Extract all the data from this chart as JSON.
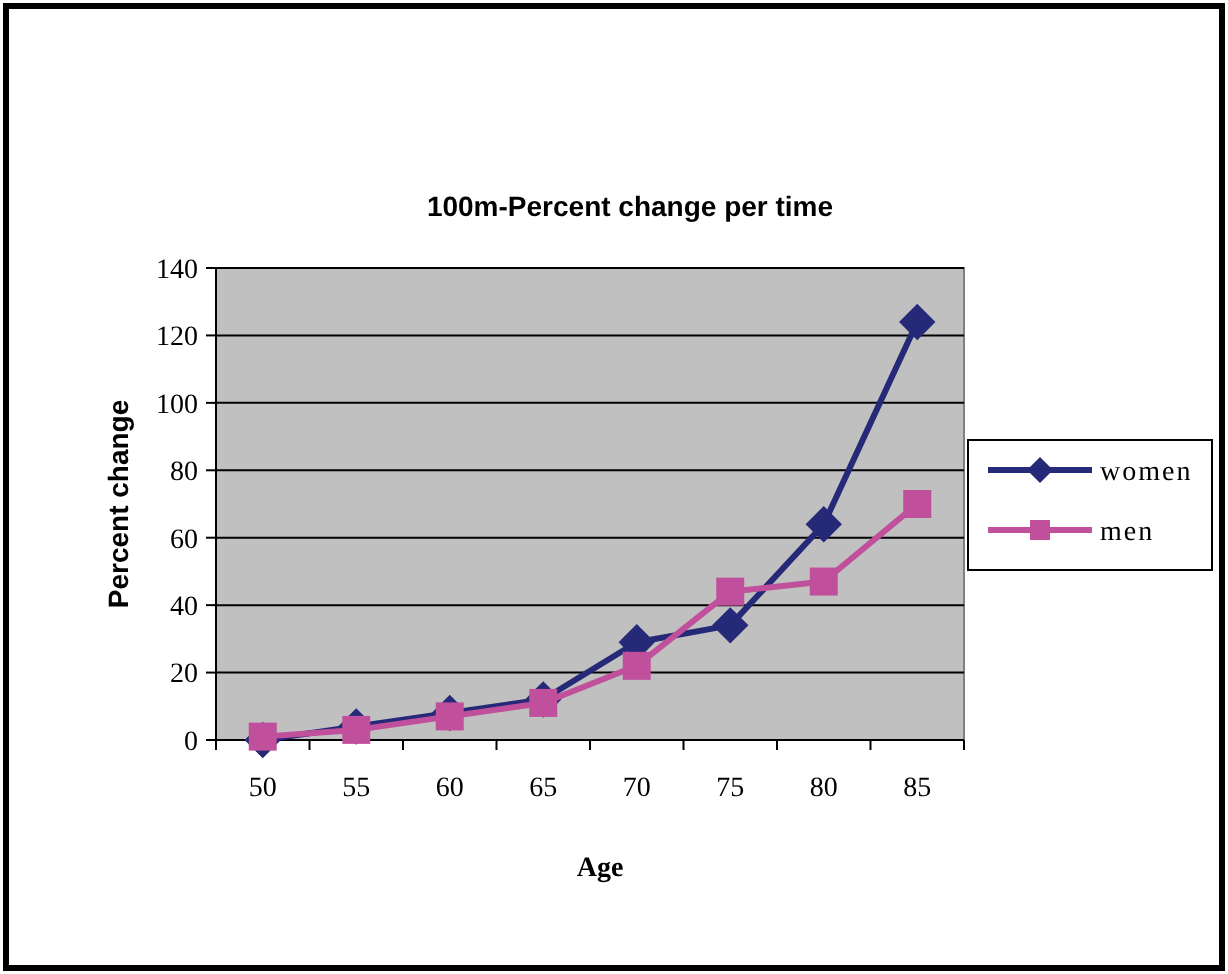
{
  "chart_data": {
    "type": "line",
    "title": "100m-Percent change per time",
    "xlabel": "Age",
    "ylabel": "Percent change",
    "categories": [
      "50",
      "55",
      "60",
      "65",
      "70",
      "75",
      "80",
      "85"
    ],
    "series": [
      {
        "name": "women",
        "color": "#262878",
        "marker": "diamond",
        "values": [
          0,
          4,
          8,
          12,
          29,
          34,
          64,
          124
        ]
      },
      {
        "name": "men",
        "color": "#c0509c",
        "marker": "square",
        "values": [
          1,
          3,
          7,
          11,
          22,
          44,
          47,
          70
        ]
      }
    ],
    "ylim": [
      0,
      140
    ],
    "yticks": [
      0,
      20,
      40,
      60,
      80,
      100,
      120,
      140
    ],
    "grid": "y",
    "legend": "right"
  }
}
